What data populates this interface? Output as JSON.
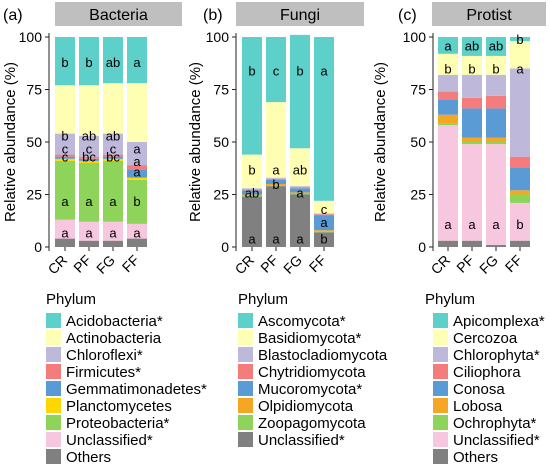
{
  "ylabel": "Relative abundance (%)",
  "legend_title": "Phylum",
  "chart_data": [
    {
      "type": "bar",
      "panel_label": "(a)",
      "title": "Bacteria",
      "categories": [
        "CR",
        "PF",
        "FG",
        "FF"
      ],
      "ylabel": "Relative abundance (%)",
      "ylim": [
        0,
        100
      ],
      "yticks": [
        0,
        25,
        50,
        75,
        100
      ],
      "series": [
        {
          "name": "Others",
          "color": "#808080",
          "values": [
            4,
            3,
            3,
            4
          ]
        },
        {
          "name": "Unclassified*",
          "color": "#F7C6DF",
          "values": [
            9,
            9,
            9,
            7
          ]
        },
        {
          "name": "Proteobacteria*",
          "color": "#8FD45A",
          "values": [
            28,
            28,
            29,
            21
          ]
        },
        {
          "name": "Planctomycetes",
          "color": "#FFD700",
          "values": [
            1,
            1,
            1,
            1
          ]
        },
        {
          "name": "Gemmatimonadetes*",
          "color": "#5B9BD5",
          "values": [
            1,
            1,
            1,
            4
          ]
        },
        {
          "name": "Firmicutes*",
          "color": "#F47C7C",
          "values": [
            1,
            1,
            1,
            2
          ]
        },
        {
          "name": "Chloroflexi*",
          "color": "#BEB9DB",
          "values": [
            10,
            10,
            10,
            11
          ]
        },
        {
          "name": "Actinobacteria",
          "color": "#FFFFB3",
          "values": [
            23,
            24,
            24,
            28
          ]
        },
        {
          "name": "Acidobacteria*",
          "color": "#5CD0C9",
          "values": [
            23,
            23,
            22,
            22
          ]
        }
      ],
      "letters": [
        {
          "category": "CR",
          "y": 88,
          "text": "b"
        },
        {
          "category": "PF",
          "y": 88,
          "text": "b"
        },
        {
          "category": "FG",
          "y": 88,
          "text": "ab"
        },
        {
          "category": "FF",
          "y": 88,
          "text": "a"
        },
        {
          "category": "CR",
          "y": 53,
          "text": "b"
        },
        {
          "category": "PF",
          "y": 53,
          "text": "ab"
        },
        {
          "category": "FG",
          "y": 53,
          "text": "ab"
        },
        {
          "category": "FF",
          "y": 47,
          "text": "a"
        },
        {
          "category": "CR",
          "y": 47,
          "text": "c"
        },
        {
          "category": "PF",
          "y": 47,
          "text": "c"
        },
        {
          "category": "FG",
          "y": 47,
          "text": "c"
        },
        {
          "category": "CR",
          "y": 43,
          "text": "c"
        },
        {
          "category": "PF",
          "y": 43,
          "text": "bc"
        },
        {
          "category": "FG",
          "y": 43,
          "text": "bc"
        },
        {
          "category": "FF",
          "y": 41,
          "text": "a"
        },
        {
          "category": "FF",
          "y": 36,
          "text": "a"
        },
        {
          "category": "CR",
          "y": 22,
          "text": "a"
        },
        {
          "category": "PF",
          "y": 22,
          "text": "a"
        },
        {
          "category": "FG",
          "y": 22,
          "text": "a"
        },
        {
          "category": "FF",
          "y": 22,
          "text": "b"
        },
        {
          "category": "CR",
          "y": 7,
          "text": "a"
        },
        {
          "category": "PF",
          "y": 7,
          "text": "a"
        },
        {
          "category": "FG",
          "y": 7,
          "text": "a"
        },
        {
          "category": "FF",
          "y": 7,
          "text": "a"
        }
      ],
      "legend": [
        "Acidobacteria*",
        "Actinobacteria",
        "Chloroflexi*",
        "Firmicutes*",
        "Gemmatimonadetes*",
        "Planctomycetes",
        "Proteobacteria*",
        "Unclassified*",
        "Others"
      ],
      "legend_colors": [
        "#5CD0C9",
        "#FFFFB3",
        "#BEB9DB",
        "#F47C7C",
        "#5B9BD5",
        "#FFD700",
        "#8FD45A",
        "#F7C6DF",
        "#808080"
      ]
    },
    {
      "type": "bar",
      "panel_label": "(b)",
      "title": "Fungi",
      "categories": [
        "CR",
        "PF",
        "FG",
        "FF"
      ],
      "ylabel": "Relative abundance (%)",
      "ylim": [
        0,
        100
      ],
      "yticks": [
        0,
        25,
        50,
        75,
        100
      ],
      "series": [
        {
          "name": "Unclassified*",
          "color": "#808080",
          "values": [
            24,
            29,
            25,
            7
          ]
        },
        {
          "name": "Zoopagomycota",
          "color": "#8FD45A",
          "values": [
            0.5,
            0.5,
            0.5,
            0.5
          ]
        },
        {
          "name": "Olpidiomycota",
          "color": "#F5A623",
          "values": [
            0.5,
            0.5,
            0.5,
            0.5
          ]
        },
        {
          "name": "Mucoromycota*",
          "color": "#5B9BD5",
          "values": [
            2,
            2,
            2,
            7
          ]
        },
        {
          "name": "Chytridiomycota",
          "color": "#F47C7C",
          "values": [
            0.5,
            0.5,
            0.5,
            0.5
          ]
        },
        {
          "name": "Blastocladiomycota",
          "color": "#BEB9DB",
          "values": [
            0.5,
            0.5,
            0.5,
            0.5
          ]
        },
        {
          "name": "Basidiomycota*",
          "color": "#FFFFB3",
          "values": [
            16,
            36,
            18,
            6
          ]
        },
        {
          "name": "Ascomycota*",
          "color": "#5CD0C9",
          "values": [
            56,
            31,
            54,
            78
          ]
        }
      ],
      "letters": [
        {
          "category": "CR",
          "y": 84,
          "text": "b"
        },
        {
          "category": "PF",
          "y": 84,
          "text": "c"
        },
        {
          "category": "FG",
          "y": 84,
          "text": "b"
        },
        {
          "category": "FF",
          "y": 84,
          "text": "a"
        },
        {
          "category": "CR",
          "y": 37,
          "text": "b"
        },
        {
          "category": "PF",
          "y": 37,
          "text": "a"
        },
        {
          "category": "FG",
          "y": 37,
          "text": "ab"
        },
        {
          "category": "FF",
          "y": 18,
          "text": "c"
        },
        {
          "category": "CR",
          "y": 26,
          "text": "ab"
        },
        {
          "category": "PF",
          "y": 30,
          "text": "b"
        },
        {
          "category": "FG",
          "y": 26,
          "text": "a"
        },
        {
          "category": "FF",
          "y": 12,
          "text": "a"
        },
        {
          "category": "CR",
          "y": 4,
          "text": "a"
        },
        {
          "category": "PF",
          "y": 4,
          "text": "a"
        },
        {
          "category": "FG",
          "y": 4,
          "text": "a"
        },
        {
          "category": "FF",
          "y": 4,
          "text": "b"
        }
      ],
      "legend": [
        "Ascomycota*",
        "Basidiomycota*",
        "Blastocladiomycota",
        "Chytridiomycota",
        "Mucoromycota*",
        "Olpidiomycota",
        "Zoopagomycota",
        "Unclassified*"
      ],
      "legend_colors": [
        "#5CD0C9",
        "#FFFFB3",
        "#BEB9DB",
        "#F47C7C",
        "#5B9BD5",
        "#F5A623",
        "#8FD45A",
        "#808080"
      ]
    },
    {
      "type": "bar",
      "panel_label": "(c)",
      "title": "Protist",
      "categories": [
        "CR",
        "PF",
        "FG",
        "FF"
      ],
      "ylabel": "Relative abundance (%)",
      "ylim": [
        0,
        100
      ],
      "yticks": [
        0,
        25,
        50,
        75,
        100
      ],
      "series": [
        {
          "name": "Others",
          "color": "#808080",
          "values": [
            3,
            3,
            1,
            3
          ]
        },
        {
          "name": "Unclassified*",
          "color": "#F7C6DF",
          "values": [
            55,
            46,
            48,
            18
          ]
        },
        {
          "name": "Ochrophyta*",
          "color": "#8FD45A",
          "values": [
            1,
            1,
            1,
            4
          ]
        },
        {
          "name": "Lobosa",
          "color": "#F5A623",
          "values": [
            4,
            2,
            2,
            2
          ]
        },
        {
          "name": "Conosa",
          "color": "#5B9BD5",
          "values": [
            7,
            14,
            14,
            11
          ]
        },
        {
          "name": "Ciliophora",
          "color": "#F47C7C",
          "values": [
            4,
            5,
            6,
            5
          ]
        },
        {
          "name": "Chlorophyta*",
          "color": "#BEB9DB",
          "values": [
            8,
            11,
            10,
            42
          ]
        },
        {
          "name": "Cercozoa",
          "color": "#FFFFB3",
          "values": [
            10,
            9,
            9,
            13
          ]
        },
        {
          "name": "Apicomplexa*",
          "color": "#5CD0C9",
          "values": [
            8,
            9,
            9,
            2
          ]
        }
      ],
      "letters": [
        {
          "category": "CR",
          "y": 96,
          "text": "a"
        },
        {
          "category": "PF",
          "y": 96,
          "text": "ab"
        },
        {
          "category": "FG",
          "y": 96,
          "text": "ab"
        },
        {
          "category": "FF",
          "y": 99,
          "text": "b"
        },
        {
          "category": "CR",
          "y": 85,
          "text": "b"
        },
        {
          "category": "PF",
          "y": 85,
          "text": "b"
        },
        {
          "category": "FG",
          "y": 85,
          "text": "b"
        },
        {
          "category": "FF",
          "y": 85,
          "text": "a"
        },
        {
          "category": "CR",
          "y": 11,
          "text": "a"
        },
        {
          "category": "PF",
          "y": 11,
          "text": "a"
        },
        {
          "category": "FG",
          "y": 11,
          "text": "a"
        },
        {
          "category": "FF",
          "y": 11,
          "text": "b"
        }
      ],
      "legend": [
        "Apicomplexa*",
        "Cercozoa",
        "Chlorophyta*",
        "Ciliophora",
        "Conosa",
        "Lobosa",
        "Ochrophyta*",
        "Unclassified*",
        "Others"
      ],
      "legend_colors": [
        "#5CD0C9",
        "#FFFFB3",
        "#BEB9DB",
        "#F47C7C",
        "#5B9BD5",
        "#F5A623",
        "#8FD45A",
        "#F7C6DF",
        "#808080"
      ]
    }
  ]
}
